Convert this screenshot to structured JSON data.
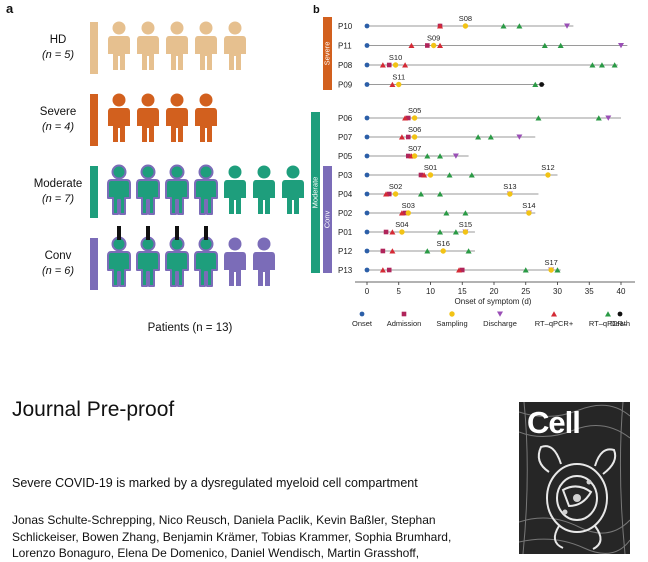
{
  "figure": {
    "panel_a_label": "a",
    "panel_b_label": "b",
    "colors": {
      "hd": "#e6c08f",
      "severe": "#d2601e",
      "moderate": "#1e9e7c",
      "conv": "#7b6cb8",
      "onset": "#2c5fa8",
      "admission": "#b0245a",
      "sampling": "#f2c315",
      "discharge": "#9a4fb6",
      "rt_pos": "#d42a35",
      "rt_neg": "#2a9a45",
      "death": "#111111"
    },
    "icon_name": "person-icon"
  },
  "panel_a": {
    "groups": [
      {
        "key": "hd",
        "name": "HD",
        "n_label": "(n = 5)",
        "icons": 5,
        "outlined": 0,
        "plain": 0
      },
      {
        "key": "severe",
        "name": "Severe",
        "n_label": "(n = 4)",
        "icons": 4,
        "outlined": 0,
        "plain": 0
      },
      {
        "key": "moderate",
        "name": "Moderate",
        "n_label": "(n = 7)",
        "icons": 7,
        "outlined": 4,
        "plain": 3
      },
      {
        "key": "conv",
        "name": "Conv",
        "n_label": "(n = 6)",
        "icons": 6,
        "outlined": 4,
        "plain": 2
      }
    ],
    "paired_links": 4,
    "patients_label": "Patients (n = 13)"
  },
  "chart_data": {
    "type": "timeline",
    "xlabel": "Onset of symptom (d)",
    "xlim": [
      -1,
      42
    ],
    "xticks": [
      0,
      5,
      10,
      15,
      20,
      25,
      30,
      35,
      40
    ],
    "groups": [
      {
        "label": "Severe",
        "color": "#d2601e",
        "patients": [
          "P10",
          "P11",
          "P08",
          "P09"
        ]
      },
      {
        "label": "Moderate",
        "color": "#1e9e7c",
        "patients": [
          "P06",
          "P07",
          "P05",
          "P03",
          "P04",
          "P02",
          "P01",
          "P12",
          "P13"
        ]
      },
      {
        "label": "Conv",
        "color": "#7b6cb8",
        "patients": [
          "P03",
          "P04",
          "P02",
          "P01",
          "P12",
          "P13"
        ]
      }
    ],
    "legend": [
      {
        "key": "onset",
        "label": "Onset"
      },
      {
        "key": "admission",
        "label": "Admission"
      },
      {
        "key": "sampling",
        "label": "Sampling"
      },
      {
        "key": "discharge",
        "label": "Discharge"
      },
      {
        "key": "rt_pos",
        "label": "RT–qPCR+"
      },
      {
        "key": "rt_neg",
        "label": "RT–qPCR–"
      },
      {
        "key": "death",
        "label": "Death"
      }
    ],
    "rows": [
      {
        "patient": "P10",
        "line_end": 32.5,
        "events": [
          {
            "t": "onset",
            "x": 0
          },
          {
            "t": "admission",
            "x": 11.5
          },
          {
            "t": "rt_pos",
            "x": 11.5
          },
          {
            "t": "sampling",
            "x": 15.5,
            "label": "S08"
          },
          {
            "t": "rt_neg",
            "x": 21.5
          },
          {
            "t": "rt_neg",
            "x": 24
          },
          {
            "t": "discharge",
            "x": 31.5
          }
        ]
      },
      {
        "patient": "P11",
        "line_end": 41,
        "events": [
          {
            "t": "onset",
            "x": 0
          },
          {
            "t": "rt_pos",
            "x": 7
          },
          {
            "t": "admission",
            "x": 9.5
          },
          {
            "t": "sampling",
            "x": 10.5,
            "label": "S09"
          },
          {
            "t": "rt_pos",
            "x": 11.5
          },
          {
            "t": "rt_neg",
            "x": 28
          },
          {
            "t": "rt_neg",
            "x": 30.5
          },
          {
            "t": "discharge",
            "x": 40
          }
        ]
      },
      {
        "patient": "P08",
        "line_end": 39.5,
        "events": [
          {
            "t": "onset",
            "x": 0
          },
          {
            "t": "rt_pos",
            "x": 2.5
          },
          {
            "t": "admission",
            "x": 3.5
          },
          {
            "t": "sampling",
            "x": 4.5,
            "label": "S10"
          },
          {
            "t": "rt_pos",
            "x": 6
          },
          {
            "t": "rt_neg",
            "x": 35.5
          },
          {
            "t": "rt_neg",
            "x": 37
          },
          {
            "t": "rt_neg",
            "x": 39
          }
        ]
      },
      {
        "patient": "P09",
        "line_end": 28,
        "events": [
          {
            "t": "onset",
            "x": 0
          },
          {
            "t": "rt_pos",
            "x": 4
          },
          {
            "t": "sampling",
            "x": 5,
            "label": "S11"
          },
          {
            "t": "rt_neg",
            "x": 26.5
          },
          {
            "t": "death",
            "x": 27.5
          }
        ]
      },
      {
        "patient": "P06",
        "line_end": 40,
        "events": [
          {
            "t": "onset",
            "x": 0
          },
          {
            "t": "rt_pos",
            "x": 6
          },
          {
            "t": "admission",
            "x": 6.5
          },
          {
            "t": "sampling",
            "x": 7.5,
            "label": "S05"
          },
          {
            "t": "rt_neg",
            "x": 27
          },
          {
            "t": "rt_neg",
            "x": 36.5
          },
          {
            "t": "discharge",
            "x": 38
          }
        ]
      },
      {
        "patient": "P07",
        "line_end": 26.5,
        "events": [
          {
            "t": "onset",
            "x": 0
          },
          {
            "t": "rt_pos",
            "x": 5.5
          },
          {
            "t": "admission",
            "x": 6.5
          },
          {
            "t": "sampling",
            "x": 7.5,
            "label": "S06"
          },
          {
            "t": "rt_neg",
            "x": 17.5
          },
          {
            "t": "rt_neg",
            "x": 19.5
          },
          {
            "t": "discharge",
            "x": 24
          }
        ]
      },
      {
        "patient": "P05",
        "line_end": 16,
        "events": [
          {
            "t": "onset",
            "x": 0
          },
          {
            "t": "admission",
            "x": 6.5
          },
          {
            "t": "rt_pos",
            "x": 7
          },
          {
            "t": "sampling",
            "x": 7.5,
            "label": "S07"
          },
          {
            "t": "rt_neg",
            "x": 9.5
          },
          {
            "t": "rt_neg",
            "x": 11.5
          },
          {
            "t": "discharge",
            "x": 14
          }
        ]
      },
      {
        "patient": "P03",
        "line_end": 30,
        "events": [
          {
            "t": "onset",
            "x": 0
          },
          {
            "t": "admission",
            "x": 8.5
          },
          {
            "t": "rt_pos",
            "x": 9
          },
          {
            "t": "sampling",
            "x": 10,
            "label": "S01"
          },
          {
            "t": "rt_neg",
            "x": 13
          },
          {
            "t": "rt_neg",
            "x": 16.5
          },
          {
            "t": "sampling",
            "x": 28.5,
            "label": "S12"
          }
        ]
      },
      {
        "patient": "P04",
        "line_end": 27,
        "events": [
          {
            "t": "onset",
            "x": 0
          },
          {
            "t": "rt_pos",
            "x": 3
          },
          {
            "t": "admission",
            "x": 3.5
          },
          {
            "t": "sampling",
            "x": 4.5,
            "label": "S02"
          },
          {
            "t": "rt_neg",
            "x": 8.5
          },
          {
            "t": "rt_neg",
            "x": 11.5
          },
          {
            "t": "sampling",
            "x": 22.5,
            "label": "S13"
          },
          {
            "t": "discharge",
            "x": 22.5
          }
        ]
      },
      {
        "patient": "P02",
        "line_end": 26.5,
        "events": [
          {
            "t": "onset",
            "x": 0
          },
          {
            "t": "rt_pos",
            "x": 5.5
          },
          {
            "t": "admission",
            "x": 6
          },
          {
            "t": "sampling",
            "x": 6.5,
            "label": "S03"
          },
          {
            "t": "rt_neg",
            "x": 12.5
          },
          {
            "t": "rt_neg",
            "x": 15.5
          },
          {
            "t": "sampling",
            "x": 25.5,
            "label": "S14"
          },
          {
            "t": "discharge",
            "x": 25.5
          }
        ]
      },
      {
        "patient": "P01",
        "line_end": 17,
        "events": [
          {
            "t": "onset",
            "x": 0
          },
          {
            "t": "admission",
            "x": 3
          },
          {
            "t": "rt_pos",
            "x": 4
          },
          {
            "t": "sampling",
            "x": 5.5,
            "label": "S04"
          },
          {
            "t": "rt_neg",
            "x": 11.5
          },
          {
            "t": "rt_neg",
            "x": 14
          },
          {
            "t": "sampling",
            "x": 15.5,
            "label": "S15"
          },
          {
            "t": "discharge",
            "x": 15.5
          }
        ]
      },
      {
        "patient": "P12",
        "line_end": 17,
        "events": [
          {
            "t": "onset",
            "x": 0
          },
          {
            "t": "admission",
            "x": 2.5
          },
          {
            "t": "rt_pos",
            "x": 4
          },
          {
            "t": "rt_neg",
            "x": 9.5
          },
          {
            "t": "sampling",
            "x": 12,
            "label": "S16"
          },
          {
            "t": "rt_neg",
            "x": 16
          }
        ]
      },
      {
        "patient": "P13",
        "line_end": 30.5,
        "events": [
          {
            "t": "onset",
            "x": 0
          },
          {
            "t": "rt_pos",
            "x": 2.5
          },
          {
            "t": "admission",
            "x": 3.5
          },
          {
            "t": "rt_pos",
            "x": 14.5
          },
          {
            "t": "admission",
            "x": 15
          },
          {
            "t": "rt_neg",
            "x": 25
          },
          {
            "t": "sampling",
            "x": 29,
            "label": "S17"
          },
          {
            "t": "discharge",
            "x": 29
          },
          {
            "t": "rt_neg",
            "x": 30
          }
        ]
      }
    ]
  },
  "journal": "Journal Pre-proof",
  "article_title": "Severe COVID-19 is marked by a dysregulated myeloid cell compartment",
  "authors": [
    "Jonas Schulte-Schrepping, Nico Reusch, Daniela Paclik, Kevin Baßler, Stephan",
    "Schlickeiser, Bowen Zhang, Benjamin Krämer, Tobias Krammer, Sophia Brumhard,",
    "Lorenzo Bonaguro, Elena De Domenico, Daniel Wendisch, Martin Grasshoff,"
  ],
  "cover": {
    "logo": "Cell"
  }
}
